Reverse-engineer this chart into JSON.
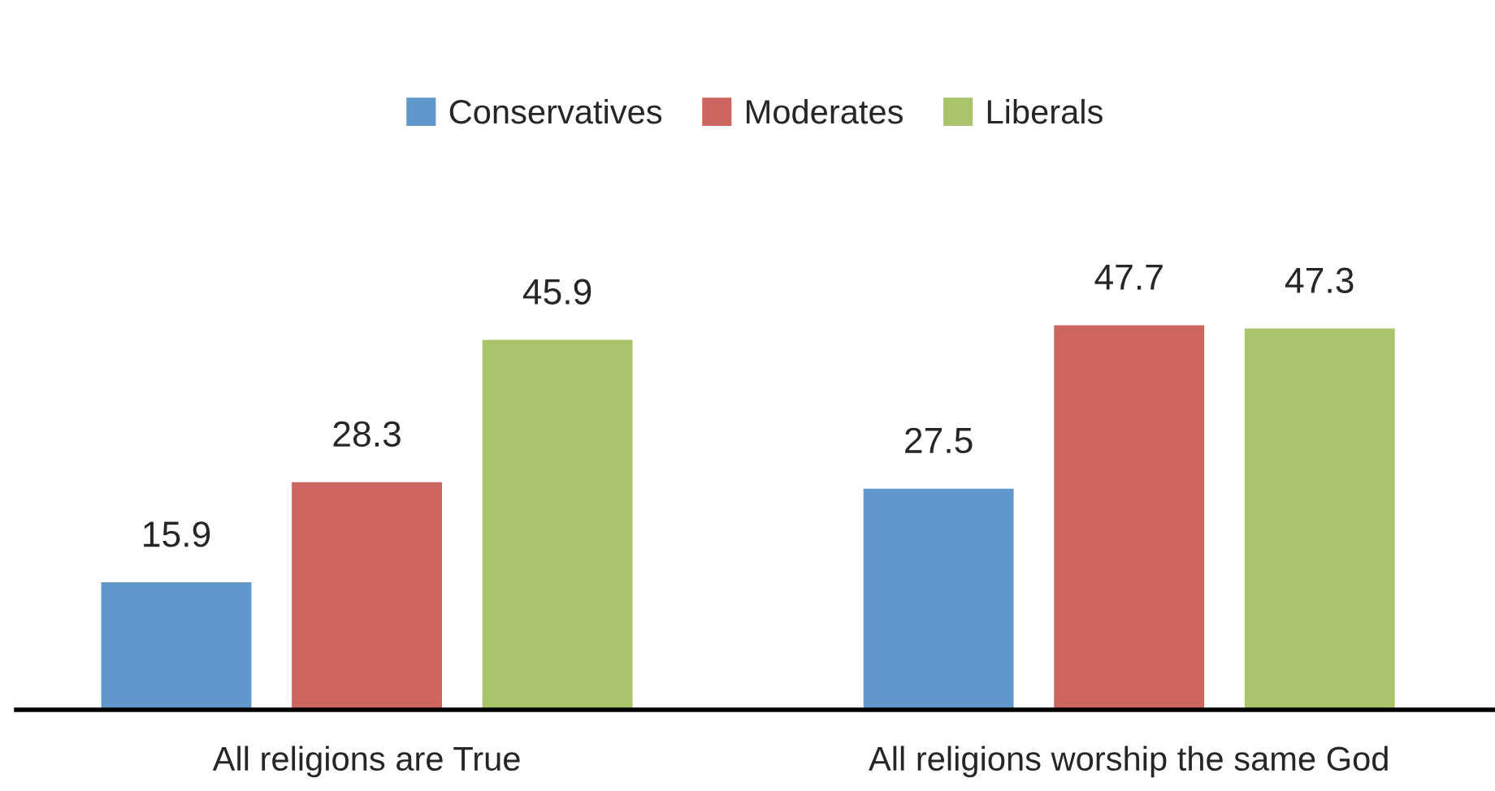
{
  "chart_data": {
    "type": "bar",
    "categories": [
      "All religions are True",
      "All religions worship the same God"
    ],
    "series": [
      {
        "name": "Conservatives",
        "color": "#6198cb",
        "values": [
          15.9,
          27.5
        ]
      },
      {
        "name": "Moderates",
        "color": "#cd6660",
        "values": [
          28.3,
          47.7
        ]
      },
      {
        "name": "Liberals",
        "color": "#a9c46b",
        "values": [
          45.9,
          47.3
        ]
      }
    ],
    "data_labels": true,
    "legend": "top",
    "grid": false,
    "tick_labels": "x"
  }
}
